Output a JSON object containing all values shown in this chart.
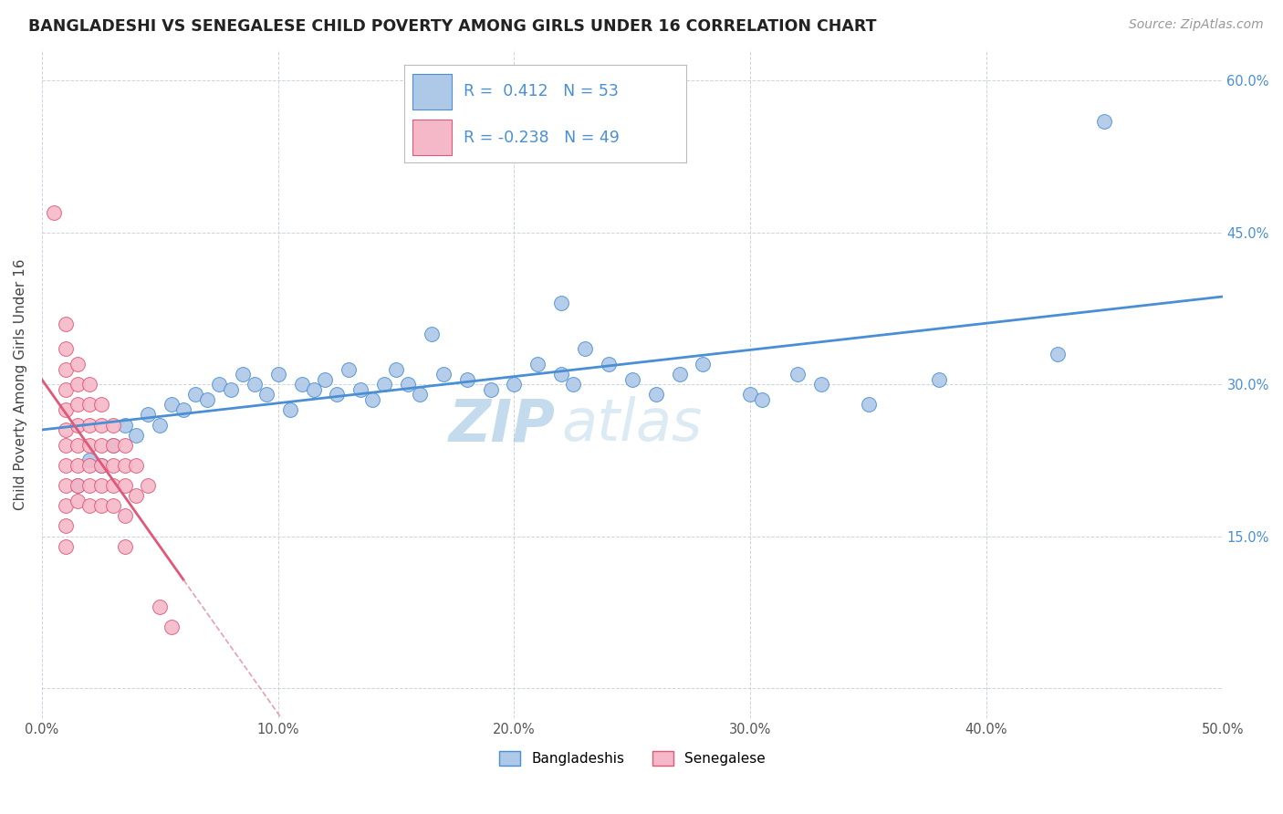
{
  "title": "BANGLADESHI VS SENEGALESE CHILD POVERTY AMONG GIRLS UNDER 16 CORRELATION CHART",
  "source": "Source: ZipAtlas.com",
  "ylabel": "Child Poverty Among Girls Under 16",
  "xlim": [
    0,
    50
  ],
  "ylim": [
    -3,
    63
  ],
  "R_blue": 0.412,
  "N_blue": 53,
  "R_pink": -0.238,
  "N_pink": 49,
  "blue_color": "#aec8e8",
  "pink_color": "#f5b8c8",
  "blue_line_color": "#4a8fd4",
  "pink_line_color": "#e05878",
  "pink_line_dashed_color": "#e8a0b0",
  "blue_scatter": [
    [
      1.5,
      20.0
    ],
    [
      2.0,
      22.5
    ],
    [
      2.5,
      22.0
    ],
    [
      3.0,
      24.0
    ],
    [
      3.5,
      26.0
    ],
    [
      4.0,
      25.0
    ],
    [
      4.5,
      27.0
    ],
    [
      5.0,
      26.0
    ],
    [
      5.5,
      28.0
    ],
    [
      6.0,
      27.5
    ],
    [
      6.5,
      29.0
    ],
    [
      7.0,
      28.5
    ],
    [
      7.5,
      30.0
    ],
    [
      8.0,
      29.5
    ],
    [
      8.5,
      31.0
    ],
    [
      9.0,
      30.0
    ],
    [
      9.5,
      29.0
    ],
    [
      10.0,
      31.0
    ],
    [
      10.5,
      27.5
    ],
    [
      11.0,
      30.0
    ],
    [
      11.5,
      29.5
    ],
    [
      12.0,
      30.5
    ],
    [
      12.5,
      29.0
    ],
    [
      13.0,
      31.5
    ],
    [
      13.5,
      29.5
    ],
    [
      14.0,
      28.5
    ],
    [
      14.5,
      30.0
    ],
    [
      15.0,
      31.5
    ],
    [
      15.5,
      30.0
    ],
    [
      16.0,
      29.0
    ],
    [
      17.0,
      31.0
    ],
    [
      18.0,
      30.5
    ],
    [
      19.0,
      29.5
    ],
    [
      20.0,
      30.0
    ],
    [
      21.0,
      32.0
    ],
    [
      22.0,
      31.0
    ],
    [
      22.5,
      30.0
    ],
    [
      23.0,
      33.5
    ],
    [
      24.0,
      32.0
    ],
    [
      25.0,
      30.5
    ],
    [
      26.0,
      29.0
    ],
    [
      27.0,
      31.0
    ],
    [
      28.0,
      32.0
    ],
    [
      30.0,
      29.0
    ],
    [
      32.0,
      31.0
    ],
    [
      33.0,
      30.0
    ],
    [
      35.0,
      28.0
    ],
    [
      38.0,
      30.5
    ],
    [
      16.5,
      35.0
    ],
    [
      22.0,
      38.0
    ],
    [
      30.5,
      28.5
    ],
    [
      43.0,
      33.0
    ],
    [
      45.0,
      56.0
    ]
  ],
  "pink_scatter": [
    [
      0.5,
      47.0
    ],
    [
      1.0,
      36.0
    ],
    [
      1.0,
      33.5
    ],
    [
      1.0,
      31.5
    ],
    [
      1.0,
      29.5
    ],
    [
      1.0,
      27.5
    ],
    [
      1.0,
      25.5
    ],
    [
      1.0,
      24.0
    ],
    [
      1.0,
      22.0
    ],
    [
      1.0,
      20.0
    ],
    [
      1.0,
      18.0
    ],
    [
      1.0,
      16.0
    ],
    [
      1.0,
      14.0
    ],
    [
      1.5,
      32.0
    ],
    [
      1.5,
      30.0
    ],
    [
      1.5,
      28.0
    ],
    [
      1.5,
      26.0
    ],
    [
      1.5,
      24.0
    ],
    [
      1.5,
      22.0
    ],
    [
      1.5,
      20.0
    ],
    [
      1.5,
      18.5
    ],
    [
      2.0,
      30.0
    ],
    [
      2.0,
      28.0
    ],
    [
      2.0,
      26.0
    ],
    [
      2.0,
      24.0
    ],
    [
      2.0,
      22.0
    ],
    [
      2.0,
      20.0
    ],
    [
      2.0,
      18.0
    ],
    [
      2.5,
      28.0
    ],
    [
      2.5,
      26.0
    ],
    [
      2.5,
      24.0
    ],
    [
      2.5,
      22.0
    ],
    [
      2.5,
      20.0
    ],
    [
      2.5,
      18.0
    ],
    [
      3.0,
      26.0
    ],
    [
      3.0,
      24.0
    ],
    [
      3.0,
      22.0
    ],
    [
      3.0,
      20.0
    ],
    [
      3.0,
      18.0
    ],
    [
      3.5,
      24.0
    ],
    [
      3.5,
      22.0
    ],
    [
      3.5,
      20.0
    ],
    [
      3.5,
      17.0
    ],
    [
      3.5,
      14.0
    ],
    [
      4.0,
      22.0
    ],
    [
      4.0,
      19.0
    ],
    [
      4.5,
      20.0
    ],
    [
      5.0,
      8.0
    ],
    [
      5.5,
      6.0
    ]
  ],
  "watermark_zip": "ZIP",
  "watermark_atlas": "atlas",
  "background_color": "#ffffff",
  "grid_color": "#c0c8d8",
  "title_fontsize": 12.5,
  "source_fontsize": 10,
  "label_fontsize": 11,
  "tick_fontsize": 10.5
}
